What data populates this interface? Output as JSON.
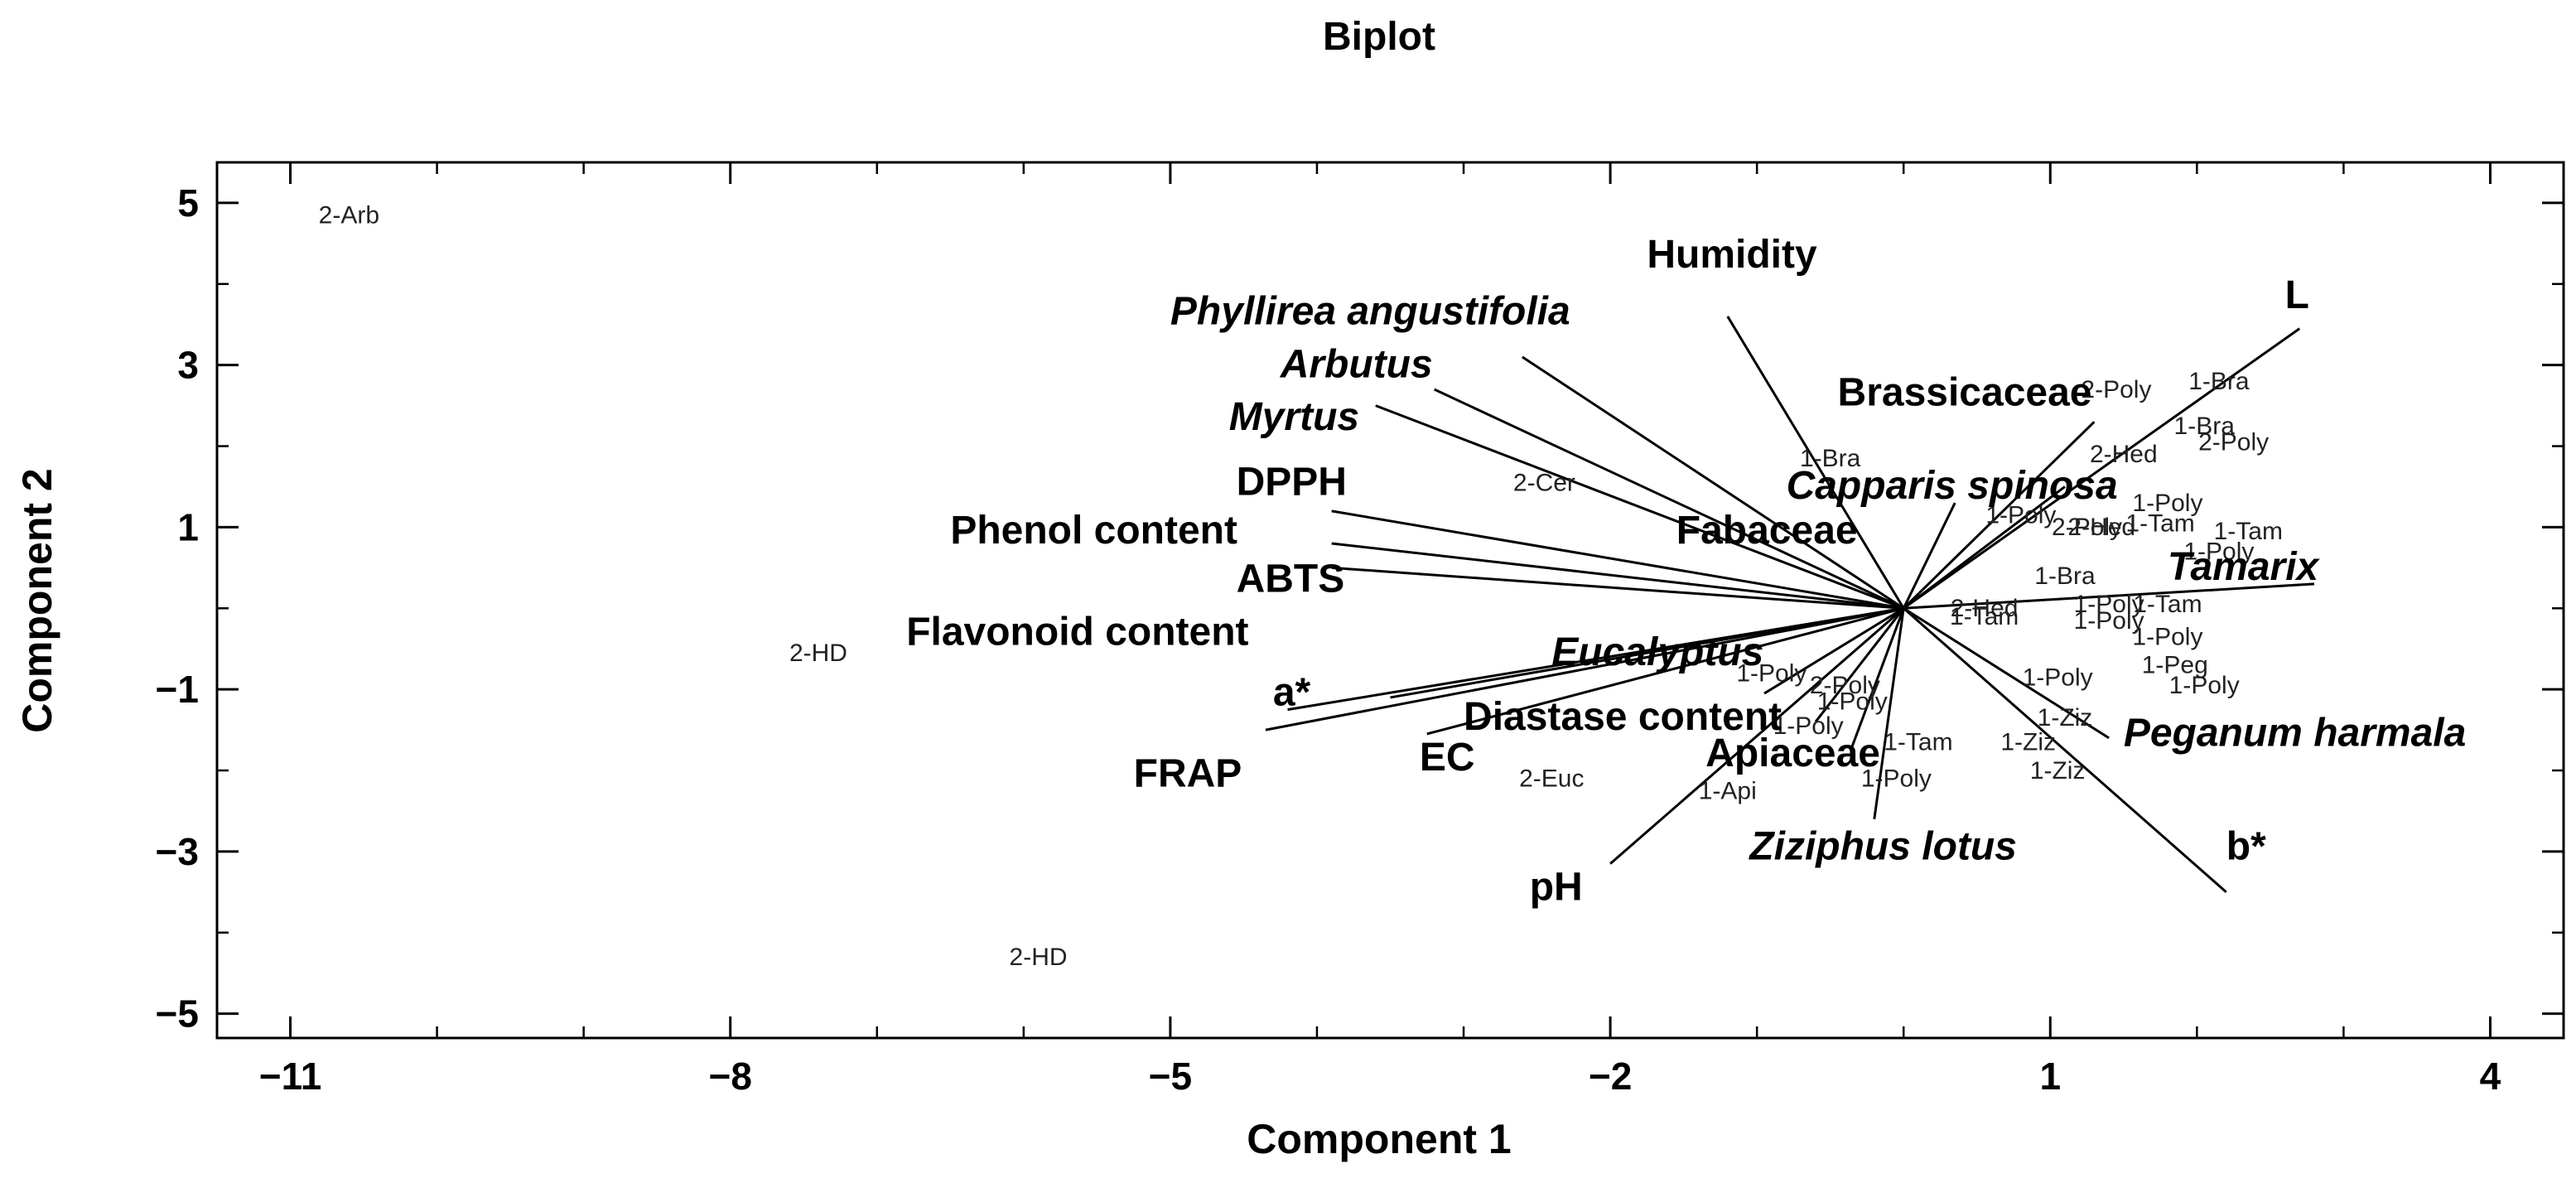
{
  "chart_data": {
    "type": "scatter",
    "title": "Biplot",
    "xlabel": "Component 1",
    "ylabel": "Component 2",
    "xlim": [
      -11.5,
      4.5
    ],
    "ylim": [
      -5.3,
      5.5
    ],
    "x_ticks": [
      -11,
      -8,
      -5,
      -2,
      1,
      4
    ],
    "x_tick_labels": [
      "−11",
      "−8",
      "−5",
      "−2",
      "1",
      "4"
    ],
    "x_minor_step": 1,
    "y_ticks": [
      -5,
      -3,
      -1,
      1,
      3,
      5
    ],
    "y_tick_labels": [
      "−5",
      "−3",
      "−1",
      "1",
      "3",
      "5"
    ],
    "y_minor_step": 1,
    "grid": false,
    "origin": [
      0,
      0
    ],
    "loadings": [
      {
        "name": "Humidity",
        "x": -1.2,
        "y": 3.6,
        "label_x": -1.75,
        "label_y": 4.2,
        "italic": false
      },
      {
        "name": "L",
        "x": 2.7,
        "y": 3.45,
        "label_x": 2.6,
        "label_y": 3.7,
        "italic": false
      },
      {
        "name": "Phyllirea angustifolia",
        "x": -2.6,
        "y": 3.1,
        "label_x": -5.0,
        "label_y": 3.5,
        "italic": true
      },
      {
        "name": "Arbutus",
        "x": -3.2,
        "y": 2.7,
        "label_x": -4.25,
        "label_y": 2.85,
        "italic": true
      },
      {
        "name": "Myrtus",
        "x": -3.6,
        "y": 2.5,
        "label_x": -4.6,
        "label_y": 2.2,
        "italic": true
      },
      {
        "name": "Brassicaceae",
        "x": 1.3,
        "y": 2.3,
        "label_x": -0.45,
        "label_y": 2.5,
        "italic": false
      },
      {
        "name": "Capparis spinosa",
        "x": 1.1,
        "y": 1.5,
        "label_x": -0.8,
        "label_y": 1.35,
        "italic": true
      },
      {
        "name": "Fabaceae",
        "x": 0.35,
        "y": 1.3,
        "label_x": -1.55,
        "label_y": 0.8,
        "italic": false
      },
      {
        "name": "DPPH",
        "x": -3.9,
        "y": 1.2,
        "label_x": -4.55,
        "label_y": 1.4,
        "italic": false
      },
      {
        "name": "Phenol content",
        "x": -3.9,
        "y": 0.8,
        "label_x": -6.5,
        "label_y": 0.8,
        "italic": false
      },
      {
        "name": "ABTS",
        "x": -3.9,
        "y": 0.5,
        "label_x": -4.55,
        "label_y": 0.2,
        "italic": false
      },
      {
        "name": "Tamarix",
        "x": 2.8,
        "y": 0.3,
        "label_x": 1.8,
        "label_y": 0.35,
        "italic": true
      },
      {
        "name": "Flavonoid content",
        "x": -3.5,
        "y": -1.1,
        "label_x": -6.8,
        "label_y": -0.45,
        "italic": false
      },
      {
        "name": "Eucalyptus",
        "x": -0.95,
        "y": -1.05,
        "label_x": -2.4,
        "label_y": -0.7,
        "italic": true
      },
      {
        "name": "a*",
        "x": -4.2,
        "y": -1.25,
        "label_x": -4.3,
        "label_y": -1.2,
        "italic": false
      },
      {
        "name": "Diastase content",
        "x": -0.6,
        "y": -1.4,
        "label_x": -3.0,
        "label_y": -1.5,
        "italic": false
      },
      {
        "name": "FRAP",
        "x": -4.35,
        "y": -1.5,
        "label_x": -5.25,
        "label_y": -2.2,
        "italic": false
      },
      {
        "name": "EC",
        "x": -3.25,
        "y": -1.55,
        "label_x": -3.3,
        "label_y": -2.0,
        "italic": false
      },
      {
        "name": "Apiaceae",
        "x": -0.35,
        "y": -1.7,
        "label_x": -1.35,
        "label_y": -1.95,
        "italic": false
      },
      {
        "name": "Peganum harmala",
        "x": 1.4,
        "y": -1.6,
        "label_x": 1.5,
        "label_y": -1.7,
        "italic": true
      },
      {
        "name": "pH",
        "x": -2.0,
        "y": -3.15,
        "label_x": -2.55,
        "label_y": -3.6,
        "italic": false
      },
      {
        "name": "Ziziphus lotus",
        "x": -0.2,
        "y": -2.6,
        "label_x": -1.05,
        "label_y": -3.1,
        "italic": true
      },
      {
        "name": "b*",
        "x": 2.2,
        "y": -3.5,
        "label_x": 2.2,
        "label_y": -3.1,
        "italic": false
      }
    ],
    "observations": [
      {
        "label": "2-Arb",
        "x": -10.6,
        "y": 4.75
      },
      {
        "label": "2-HD",
        "x": -7.4,
        "y": -0.65
      },
      {
        "label": "2-HD",
        "x": -5.9,
        "y": -4.4
      },
      {
        "label": "2-Cer",
        "x": -2.45,
        "y": 1.45
      },
      {
        "label": "2-Euc",
        "x": -2.4,
        "y": -2.2
      },
      {
        "label": "1-Api",
        "x": -1.2,
        "y": -2.35
      },
      {
        "label": "1-Bra",
        "x": -0.5,
        "y": 1.75
      },
      {
        "label": "1-Bra",
        "x": 2.15,
        "y": 2.7
      },
      {
        "label": "1-Bra",
        "x": 2.05,
        "y": 2.15
      },
      {
        "label": "1-Bra",
        "x": 1.1,
        "y": 0.3
      },
      {
        "label": "2-Poly",
        "x": 1.45,
        "y": 2.6
      },
      {
        "label": "2-Poly",
        "x": 2.25,
        "y": 1.95
      },
      {
        "label": "2-Hed",
        "x": 1.5,
        "y": 1.8
      },
      {
        "label": "2-Hed",
        "x": 0.55,
        "y": -0.1
      },
      {
        "label": "1-Poly",
        "x": 1.8,
        "y": 1.2
      },
      {
        "label": "1-Poly",
        "x": 0.8,
        "y": 1.05
      },
      {
        "label": "1-Tam",
        "x": 1.75,
        "y": 0.95
      },
      {
        "label": "1-Tam",
        "x": 2.35,
        "y": 0.85
      },
      {
        "label": "2-Poly",
        "x": 1.25,
        "y": 0.9
      },
      {
        "label": "2-Hed",
        "x": 1.35,
        "y": 0.9
      },
      {
        "label": "1-Poly",
        "x": 2.15,
        "y": 0.6
      },
      {
        "label": "1-Poly",
        "x": 1.4,
        "y": -0.05
      },
      {
        "label": "1-Tam",
        "x": 1.8,
        "y": -0.05
      },
      {
        "label": "1-Tam",
        "x": 0.55,
        "y": -0.2
      },
      {
        "label": "1-Poly",
        "x": 1.4,
        "y": -0.25
      },
      {
        "label": "1-Poly",
        "x": 1.8,
        "y": -0.45
      },
      {
        "label": "1-Peg",
        "x": 1.85,
        "y": -0.8
      },
      {
        "label": "1-Poly",
        "x": 1.05,
        "y": -0.95
      },
      {
        "label": "1-Poly",
        "x": 2.05,
        "y": -1.05
      },
      {
        "label": "1-Poly",
        "x": -0.35,
        "y": -1.25
      },
      {
        "label": "1-Poly",
        "x": -0.65,
        "y": -1.55
      },
      {
        "label": "1-Poly",
        "x": -0.05,
        "y": -2.2
      },
      {
        "label": "2-Poly",
        "x": -0.4,
        "y": -1.05
      },
      {
        "label": "1-Poly",
        "x": -0.9,
        "y": -0.9
      },
      {
        "label": "1-Tam",
        "x": 0.1,
        "y": -1.75
      },
      {
        "label": "1-Ziz",
        "x": 1.1,
        "y": -1.45
      },
      {
        "label": "1-Ziz",
        "x": 0.85,
        "y": -1.75
      },
      {
        "label": "1-Ziz",
        "x": 1.05,
        "y": -2.1
      }
    ]
  }
}
